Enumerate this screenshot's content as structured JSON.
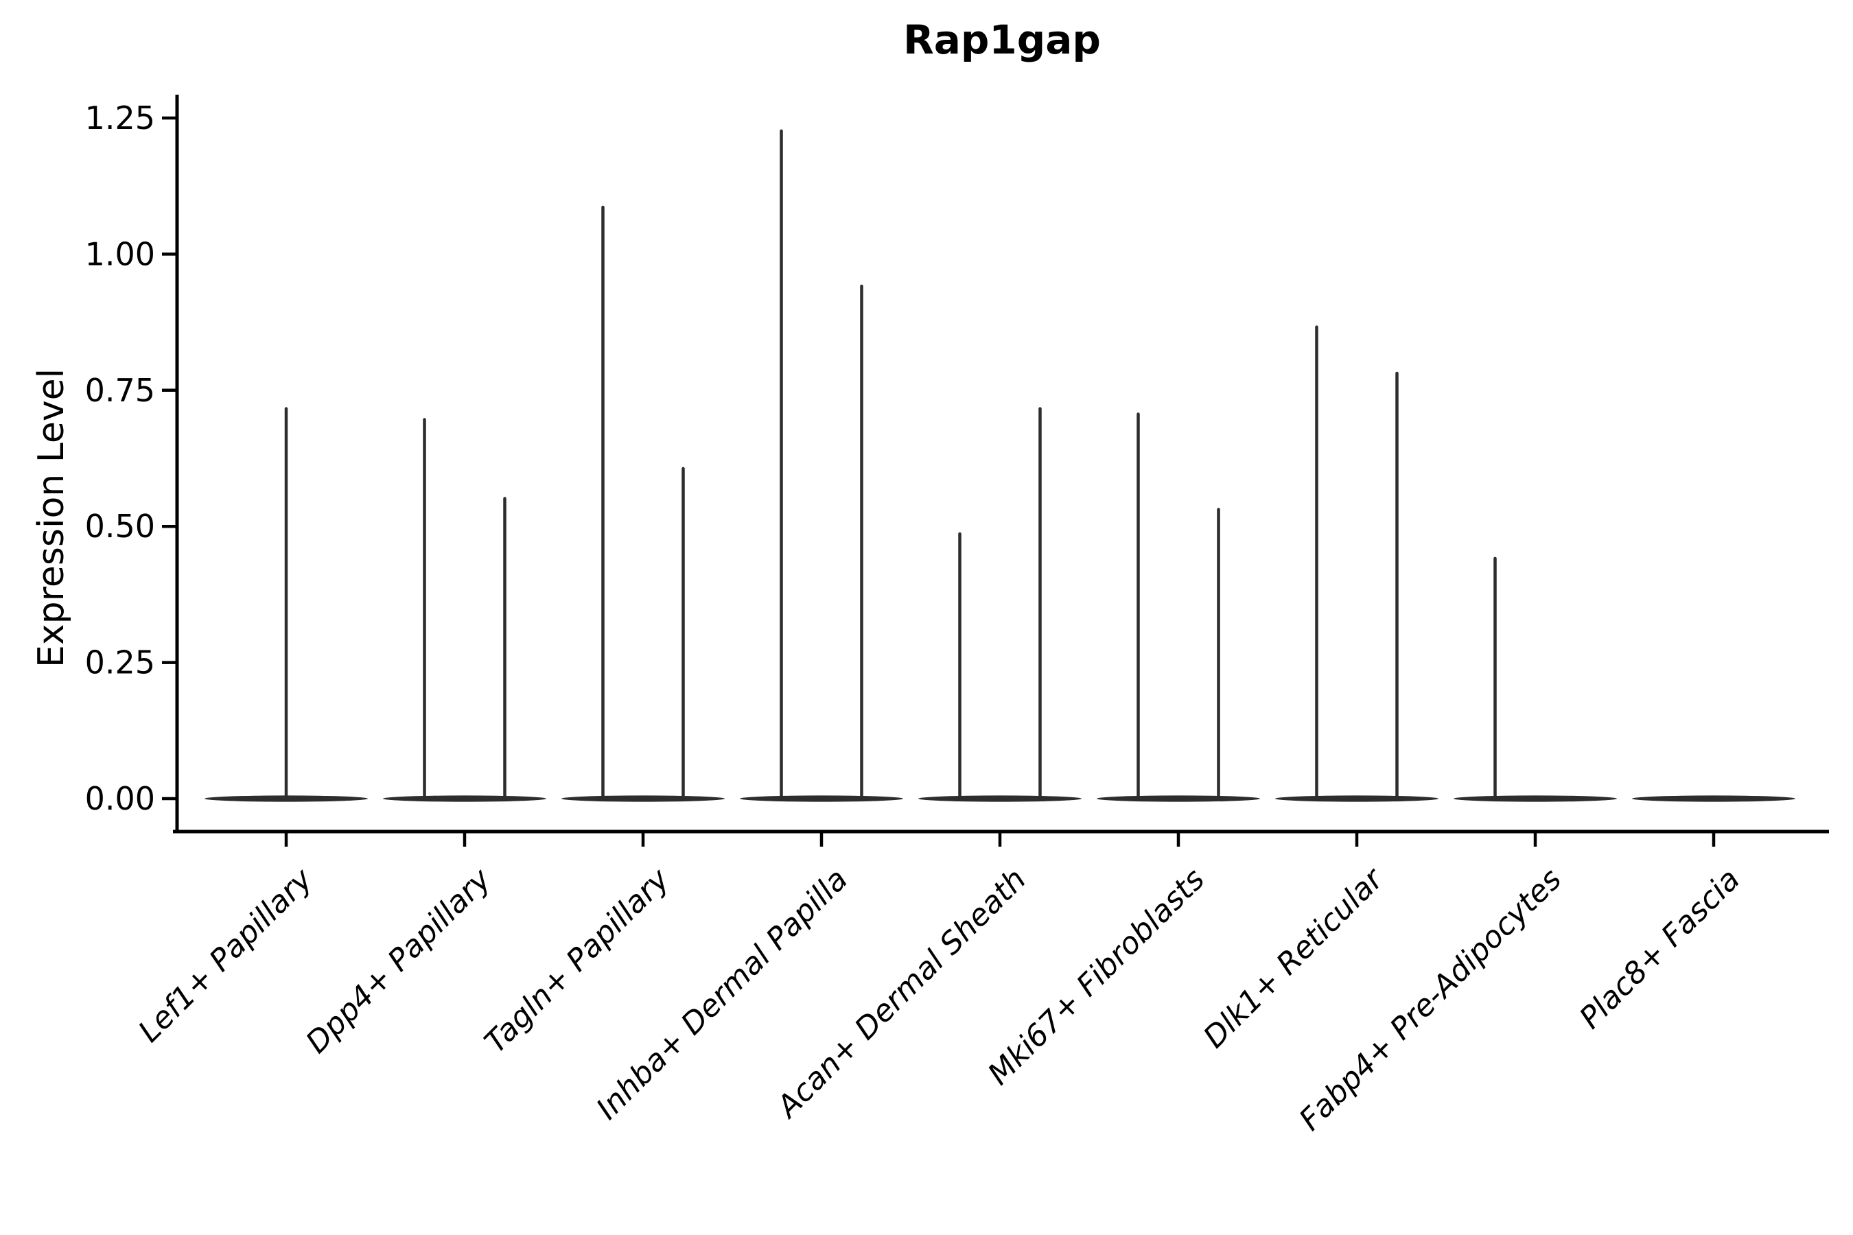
{
  "title": "Rap1gap",
  "axes": {
    "y": {
      "label": "Expression Level",
      "tick_labels": [
        "0.00",
        "0.25",
        "0.50",
        "0.75",
        "1.00",
        "1.25"
      ],
      "tick_values": [
        0.0,
        0.25,
        0.5,
        0.75,
        1.0,
        1.25
      ],
      "range": [
        0.0,
        1.25
      ]
    },
    "x": {
      "label": "",
      "categories": [
        "Lef1+ Papillary",
        "Dpp4+ Papillary",
        "Tagln+ Papillary",
        "Inhba+ Dermal Papilla",
        "Acan+ Dermal Sheath",
        "Mki67+ Fibroblasts",
        "Dlk1+ Reticular",
        "Fabp4+ Pre-Adipocytes",
        "Plac8+ Fascia"
      ],
      "tick_rotation_degrees": 45
    }
  },
  "chart_data": {
    "type": "violin",
    "title": "Rap1gap",
    "xlabel": "",
    "ylabel": "Expression Level",
    "ylim": [
      0.0,
      1.25
    ],
    "yticks": [
      0.0,
      0.25,
      0.5,
      0.75,
      1.0,
      1.25
    ],
    "grid": false,
    "legend": "none",
    "categories": [
      "Lef1+ Papillary",
      "Dpp4+ Papillary",
      "Tagln+ Papillary",
      "Inhba+ Dermal Papilla",
      "Acan+ Dermal Sheath",
      "Mki67+ Fibroblasts",
      "Dlk1+ Reticular",
      "Fabp4+ Pre-Adipocytes",
      "Plac8+ Fascia"
    ],
    "violins": [
      {
        "category": "Lef1+ Papillary",
        "body_at_zero": true,
        "spikes": [
          {
            "offset": 0.0,
            "max": 0.72
          }
        ]
      },
      {
        "category": "Dpp4+ Papillary",
        "body_at_zero": true,
        "spikes": [
          {
            "offset": -0.225,
            "max": 0.7
          },
          {
            "offset": 0.225,
            "max": 0.555
          }
        ]
      },
      {
        "category": "Tagln+ Papillary",
        "body_at_zero": true,
        "spikes": [
          {
            "offset": -0.225,
            "max": 1.09
          },
          {
            "offset": 0.225,
            "max": 0.61
          }
        ]
      },
      {
        "category": "Inhba+ Dermal Papilla",
        "body_at_zero": true,
        "spikes": [
          {
            "offset": -0.225,
            "max": 1.23
          },
          {
            "offset": 0.225,
            "max": 0.945
          }
        ]
      },
      {
        "category": "Acan+ Dermal Sheath",
        "body_at_zero": true,
        "spikes": [
          {
            "offset": -0.225,
            "max": 0.49
          },
          {
            "offset": 0.225,
            "max": 0.72
          }
        ]
      },
      {
        "category": "Mki67+ Fibroblasts",
        "body_at_zero": true,
        "spikes": [
          {
            "offset": -0.225,
            "max": 0.71
          },
          {
            "offset": 0.225,
            "max": 0.535
          }
        ]
      },
      {
        "category": "Dlk1+ Reticular",
        "body_at_zero": true,
        "spikes": [
          {
            "offset": -0.225,
            "max": 0.87
          },
          {
            "offset": 0.225,
            "max": 0.785
          }
        ]
      },
      {
        "category": "Fabp4+ Pre-Adipocytes",
        "body_at_zero": true,
        "spikes": [
          {
            "offset": -0.225,
            "max": 0.445
          }
        ]
      },
      {
        "category": "Plac8+ Fascia",
        "body_at_zero": true,
        "spikes": []
      }
    ]
  },
  "style": {
    "violin_color": "#2d2d2d",
    "axis_color": "#000000",
    "background_color": "#ffffff"
  }
}
